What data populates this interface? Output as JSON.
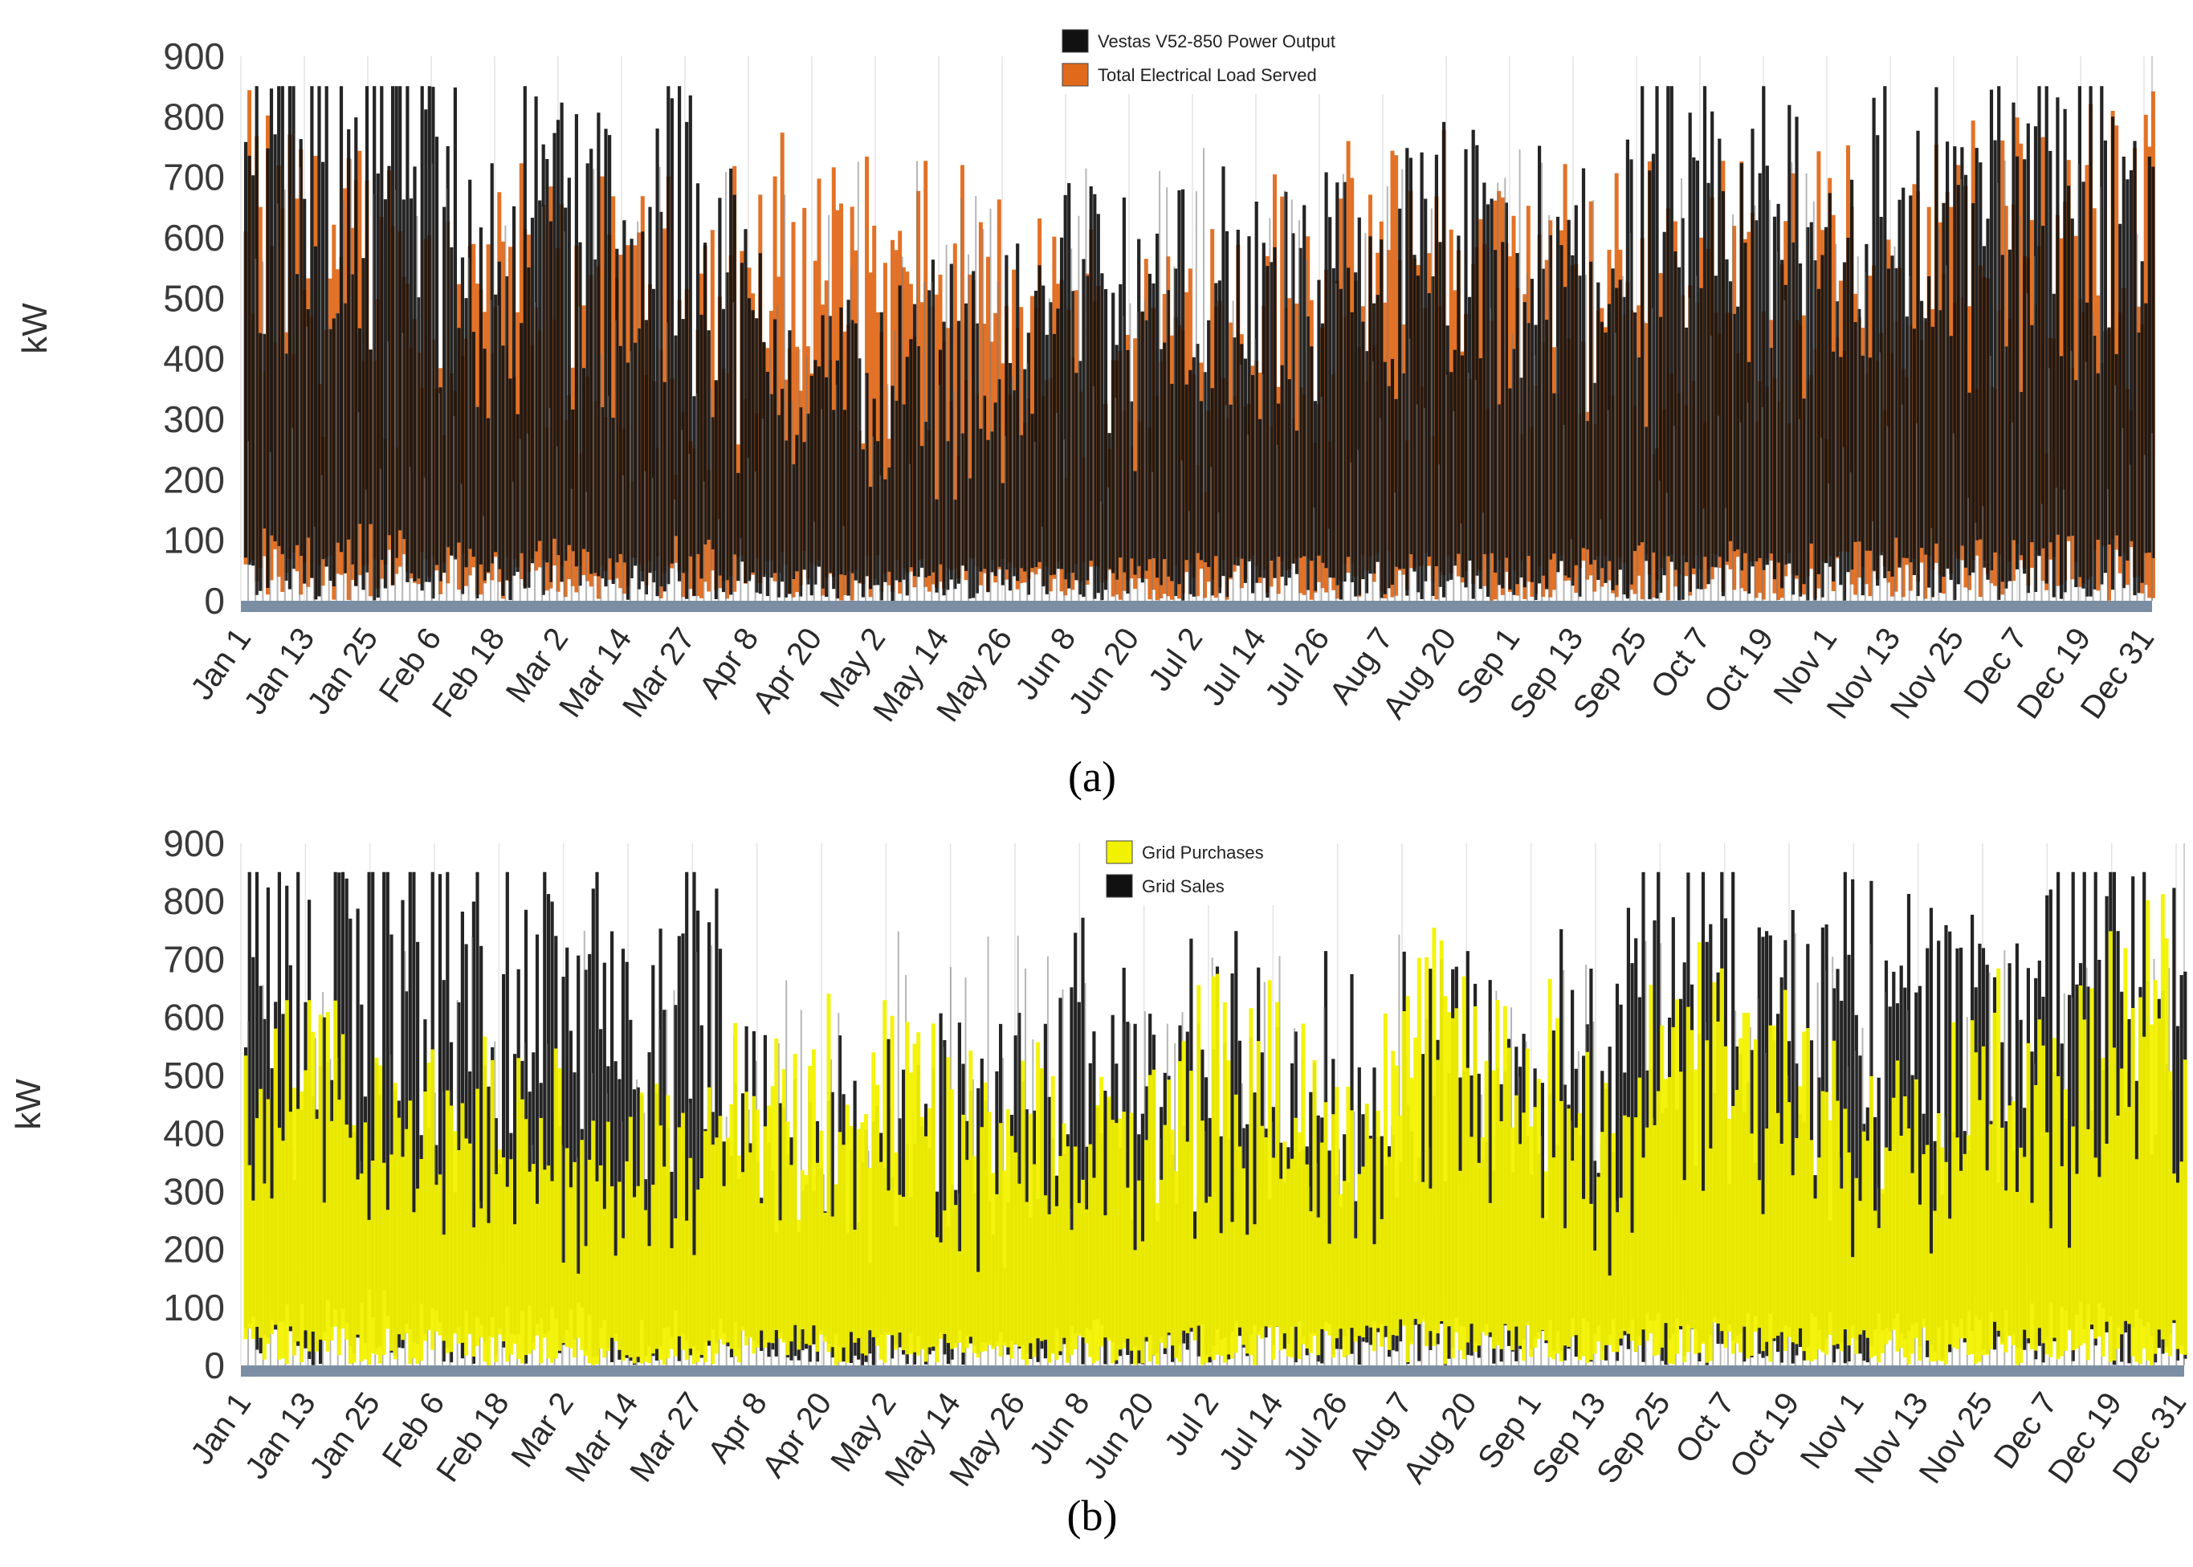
{
  "chart_data": [
    {
      "type": "line",
      "panel": "a",
      "caption": "(a)",
      "ylabel": "kW",
      "ylim": [
        0,
        900
      ],
      "yticks": [
        "0",
        "100",
        "200",
        "300",
        "400",
        "500",
        "600",
        "700",
        "800",
        "900"
      ],
      "categories": [
        "Jan 1",
        "Jan 13",
        "Jan 25",
        "Feb 6",
        "Feb 18",
        "Mar 2",
        "Mar 14",
        "Mar 27",
        "Apr 8",
        "Apr 20",
        "May 2",
        "May 14",
        "May 26",
        "Jun 8",
        "Jun 20",
        "Jul 2",
        "Jul 14",
        "Jul 26",
        "Aug 7",
        "Aug 20",
        "Sep 1",
        "Sep 13",
        "Sep 25",
        "Oct 7",
        "Oct 19",
        "Nov 1",
        "Nov 13",
        "Nov 25",
        "Dec 7",
        "Dec 19",
        "Dec 31"
      ],
      "legend_placement": "top-center",
      "series": [
        {
          "name": "Vestas V52-850 Power Output",
          "color": "#111111",
          "values": [
            520,
            430,
            560,
            420,
            380,
            460,
            300,
            470,
            250,
            230,
            200,
            250,
            220,
            360,
            280,
            320,
            300,
            300,
            330,
            360,
            300,
            350,
            400,
            380,
            420,
            390,
            420,
            400,
            450,
            480,
            380
          ]
        },
        {
          "name": "Total Electrical Load Served",
          "color": "#e06a1b",
          "values": [
            380,
            360,
            340,
            330,
            310,
            300,
            290,
            300,
            320,
            350,
            330,
            300,
            280,
            260,
            250,
            290,
            310,
            300,
            340,
            350,
            320,
            300,
            320,
            330,
            340,
            330,
            340,
            360,
            380,
            410,
            430
          ]
        }
      ]
    },
    {
      "type": "line",
      "panel": "b",
      "caption": "(b)",
      "ylabel": "kW",
      "ylim": [
        0,
        900
      ],
      "yticks": [
        "0",
        "100",
        "200",
        "300",
        "400",
        "500",
        "600",
        "700",
        "800",
        "900"
      ],
      "categories": [
        "Jan 1",
        "Jan 13",
        "Jan 25",
        "Feb 6",
        "Feb 18",
        "Mar 2",
        "Mar 14",
        "Mar 27",
        "Apr 8",
        "Apr 20",
        "May 2",
        "May 14",
        "May 26",
        "Jun 8",
        "Jun 20",
        "Jul 2",
        "Jul 14",
        "Jul 26",
        "Aug 7",
        "Aug 20",
        "Sep 1",
        "Sep 13",
        "Sep 25",
        "Oct 7",
        "Oct 19",
        "Nov 1",
        "Nov 13",
        "Nov 25",
        "Dec 7",
        "Dec 19",
        "Dec 31"
      ],
      "legend_placement": "top-center",
      "series": [
        {
          "name": "Grid Purchases",
          "color": "#f2f200",
          "values": [
            300,
            280,
            260,
            240,
            220,
            200,
            190,
            210,
            260,
            300,
            240,
            220,
            200,
            210,
            230,
            300,
            280,
            270,
            330,
            340,
            270,
            240,
            300,
            320,
            260,
            250,
            280,
            320,
            260,
            330,
            380
          ]
        },
        {
          "name": "Grid Sales",
          "color": "#111111",
          "values": [
            450,
            420,
            540,
            430,
            400,
            460,
            320,
            440,
            260,
            250,
            230,
            260,
            240,
            360,
            290,
            330,
            310,
            300,
            340,
            360,
            310,
            360,
            420,
            390,
            400,
            380,
            410,
            380,
            470,
            430,
            360
          ]
        }
      ]
    }
  ]
}
